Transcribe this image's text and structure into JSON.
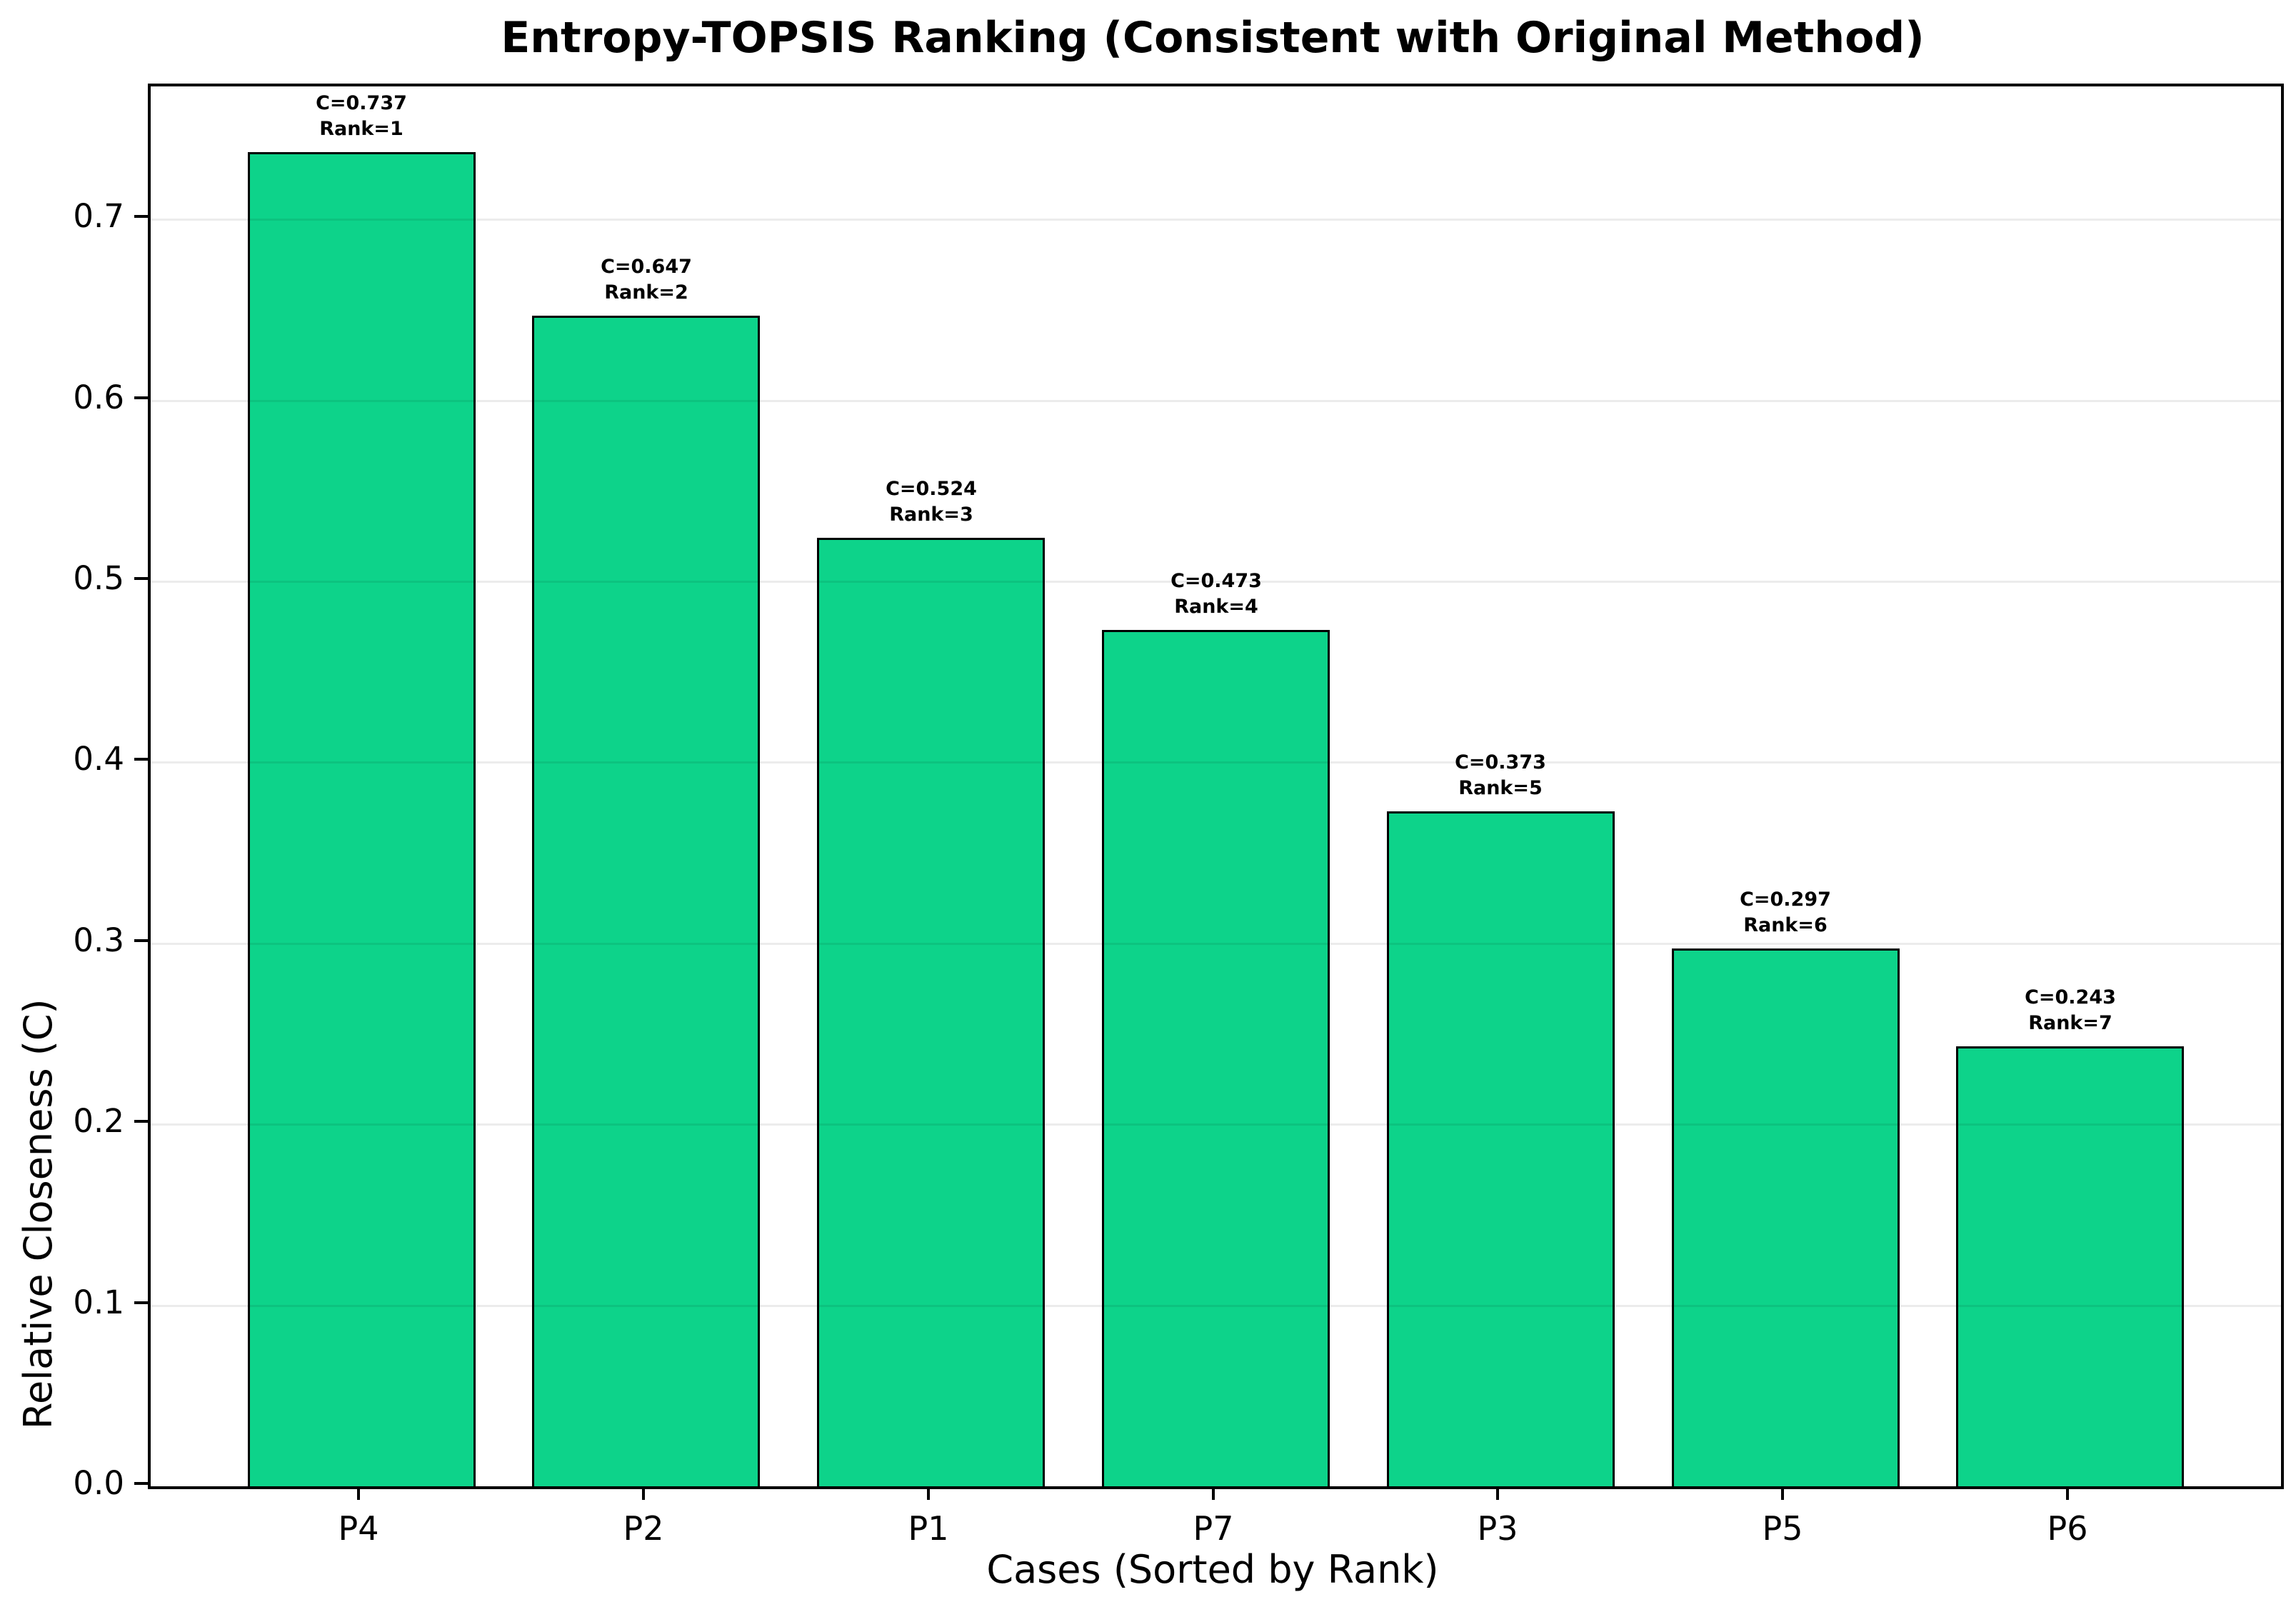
{
  "chart_data": {
    "type": "bar",
    "title": "Entropy-TOPSIS Ranking (Consistent with Original Method)",
    "xlabel": "Cases (Sorted by Rank)",
    "ylabel": "Relative Closeness (C)",
    "categories": [
      "P4",
      "P2",
      "P1",
      "P7",
      "P3",
      "P5",
      "P6"
    ],
    "values": [
      0.737,
      0.647,
      0.524,
      0.473,
      0.373,
      0.297,
      0.243
    ],
    "ranks": [
      1,
      2,
      3,
      4,
      5,
      6,
      7
    ],
    "bar_labels": [
      [
        "C=0.737",
        "Rank=1"
      ],
      [
        "C=0.647",
        "Rank=2"
      ],
      [
        "C=0.524",
        "Rank=3"
      ],
      [
        "C=0.473",
        "Rank=4"
      ],
      [
        "C=0.373",
        "Rank=5"
      ],
      [
        "C=0.297",
        "Rank=6"
      ],
      [
        "C=0.243",
        "Rank=7"
      ]
    ],
    "ylim": [
      0,
      0.7735
    ],
    "yticks": [
      0.0,
      0.1,
      0.2,
      0.3,
      0.4,
      0.5,
      0.6,
      0.7
    ],
    "ytick_labels": [
      "0.0",
      "0.1",
      "0.2",
      "0.3",
      "0.4",
      "0.5",
      "0.6",
      "0.7"
    ],
    "grid": "horizontal",
    "legend": "none",
    "bar_color": "#0dd38a",
    "bar_edge_color": "#000000"
  }
}
